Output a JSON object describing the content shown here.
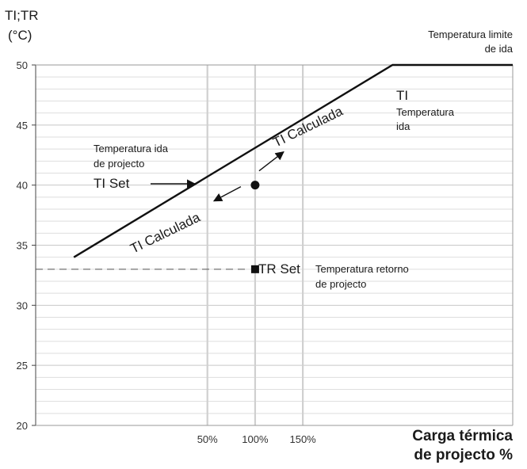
{
  "chart_data": {
    "type": "line",
    "y_axis_label_line1": "TI;TR",
    "y_axis_label_line2": "(°C)",
    "ylim": [
      20,
      50
    ],
    "y_ticks": [
      "20",
      "25",
      "30",
      "35",
      "40",
      "45",
      "50"
    ],
    "x_ticks": [
      {
        "label": "50%",
        "x": 50
      },
      {
        "label": "100%",
        "x": 100
      },
      {
        "label": "150%",
        "x": 150
      }
    ],
    "xlim": [
      -130,
      370
    ],
    "xlabel_line1": "Carga térmica",
    "xlabel_line2": "de projecto %",
    "grid": true,
    "series": [
      {
        "points": [
          {
            "x": -90,
            "y": 34
          },
          {
            "x": 244,
            "y": 50
          },
          {
            "x": 370,
            "y": 50
          }
        ]
      }
    ],
    "markers": {
      "ti_set": {
        "x": 100,
        "y": 40
      },
      "tr_set": {
        "x": 100,
        "y": 33
      }
    },
    "dashed_reference_y": 33,
    "annotations": {
      "limit_line1": "Temperatura limite",
      "limit_line2": "de ida",
      "ti_symbol": "TI",
      "ti_name_line1": "Temperatura",
      "ti_name_line2": "ida",
      "calc_upper": "TI Calculada",
      "calc_lower": "TI Calculada",
      "ida_proj_line1": "Temperatura ida",
      "ida_proj_line2": "de projecto",
      "ti_set": "TI Set",
      "tr_set": "TR Set",
      "retorno_line1": "Temperatura retorno",
      "retorno_line2": "de projecto"
    }
  }
}
